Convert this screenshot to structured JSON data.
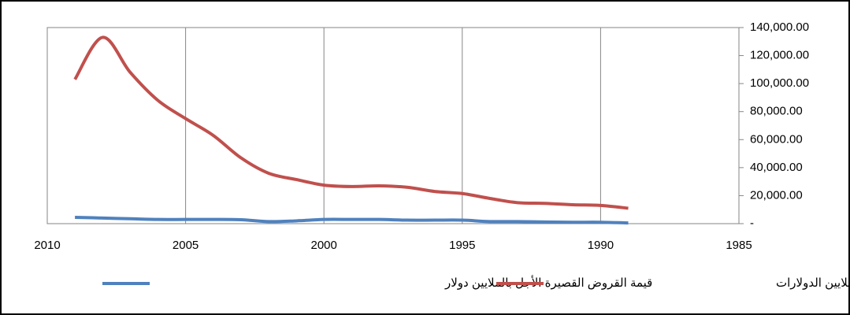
{
  "chart_data": {
    "type": "line",
    "x": [
      2009,
      2008,
      2007,
      2006,
      2005,
      2004,
      2003,
      2002,
      2001,
      2000,
      1999,
      1998,
      1997,
      1996,
      1995,
      1994,
      1993,
      1992,
      1991,
      1990,
      1989
    ],
    "series": [
      {
        "name": "قيمة القروض القصيرة الأجل بالملايين دولار",
        "color": "#4f81bd",
        "values": [
          4500,
          4000,
          3500,
          3000,
          3000,
          3000,
          2800,
          1500,
          2000,
          3000,
          3000,
          3000,
          2500,
          2500,
          2500,
          1500,
          1500,
          1200,
          1000,
          1000,
          500
        ]
      },
      {
        "name": "قيمة الصادرات بملايين الدولارات",
        "color": "#c0504d",
        "values": [
          103000,
          133000,
          108000,
          88000,
          75000,
          63000,
          47000,
          36000,
          31500,
          27500,
          26500,
          27000,
          26000,
          23000,
          21500,
          18000,
          15000,
          14500,
          13500,
          13000,
          11000
        ]
      }
    ],
    "xlim": [
      2010,
      1985
    ],
    "xticks": [
      2010,
      2005,
      2000,
      1995,
      1990,
      1985
    ],
    "ylim": [
      0,
      140000
    ],
    "yticks": [
      {
        "value": 0,
        "label": "-"
      },
      {
        "value": 20000,
        "label": "20,000.00"
      },
      {
        "value": 40000,
        "label": "40,000.00"
      },
      {
        "value": 60000,
        "label": "60,000.00"
      },
      {
        "value": 80000,
        "label": "80,000.00"
      },
      {
        "value": 100000,
        "label": "100,000.00"
      },
      {
        "value": 120000,
        "label": "120,000.00"
      },
      {
        "value": 140000,
        "label": "140,000.00"
      }
    ],
    "grid": true,
    "legend": "bottom"
  }
}
